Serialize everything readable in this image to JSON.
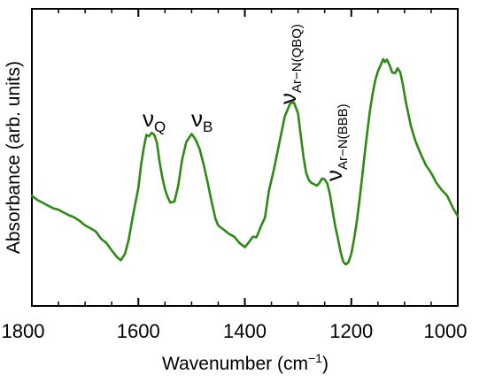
{
  "chart_data": {
    "type": "line",
    "xlabel": "Wavenumber (cm",
    "xlabel_sup": "−1",
    "xlabel_end": ")",
    "ylabel": "Absorbance (arb. units)",
    "xlim": [
      1800,
      1000
    ],
    "ylim": [
      0,
      1
    ],
    "x_reversed": true,
    "y_tick_labels_shown": false,
    "grid": false,
    "x_ticks": [
      1800,
      1600,
      1400,
      1200,
      1000
    ],
    "x_tick_labels": [
      "1800",
      "1600",
      "1400",
      "1200",
      "1000"
    ],
    "line_color": "#2d8a12",
    "series": [
      {
        "x": [
          1800,
          1790,
          1780,
          1770,
          1760,
          1750,
          1740,
          1730,
          1720,
          1710,
          1700,
          1690,
          1680,
          1670,
          1660,
          1650,
          1640,
          1633,
          1625,
          1618,
          1610,
          1600,
          1595,
          1590,
          1585,
          1580,
          1575,
          1570,
          1565,
          1560,
          1555,
          1550,
          1545,
          1540,
          1532,
          1525,
          1518,
          1510,
          1500,
          1493,
          1485,
          1478,
          1470,
          1462,
          1455,
          1450,
          1440,
          1430,
          1420,
          1410,
          1400,
          1393,
          1385,
          1378,
          1370,
          1362,
          1355,
          1345,
          1335,
          1325,
          1315,
          1308,
          1300,
          1295,
          1290,
          1285,
          1280,
          1275,
          1270,
          1265,
          1260,
          1255,
          1250,
          1245,
          1240,
          1235,
          1230,
          1225,
          1220,
          1215,
          1210,
          1205,
          1200,
          1195,
          1190,
          1185,
          1180,
          1175,
          1170,
          1165,
          1160,
          1155,
          1150,
          1145,
          1140,
          1137,
          1133,
          1128,
          1123,
          1118,
          1113,
          1108,
          1103,
          1098,
          1093,
          1088,
          1080,
          1070,
          1060,
          1050,
          1040,
          1030,
          1020,
          1010,
          1000
        ],
        "y": [
          0.371,
          0.357,
          0.348,
          0.338,
          0.329,
          0.324,
          0.314,
          0.305,
          0.298,
          0.286,
          0.271,
          0.262,
          0.251,
          0.226,
          0.212,
          0.187,
          0.164,
          0.154,
          0.176,
          0.224,
          0.305,
          0.398,
          0.474,
          0.531,
          0.576,
          0.571,
          0.583,
          0.576,
          0.548,
          0.483,
          0.433,
          0.393,
          0.367,
          0.348,
          0.352,
          0.405,
          0.491,
          0.552,
          0.579,
          0.562,
          0.529,
          0.481,
          0.417,
          0.348,
          0.293,
          0.271,
          0.257,
          0.243,
          0.233,
          0.212,
          0.198,
          0.213,
          0.233,
          0.231,
          0.267,
          0.298,
          0.386,
          0.463,
          0.551,
          0.638,
          0.681,
          0.686,
          0.648,
          0.576,
          0.505,
          0.45,
          0.424,
          0.414,
          0.41,
          0.405,
          0.414,
          0.429,
          0.426,
          0.412,
          0.374,
          0.319,
          0.267,
          0.226,
          0.181,
          0.148,
          0.14,
          0.148,
          0.176,
          0.224,
          0.281,
          0.352,
          0.429,
          0.51,
          0.586,
          0.657,
          0.714,
          0.76,
          0.79,
          0.81,
          0.831,
          0.821,
          0.829,
          0.81,
          0.786,
          0.783,
          0.8,
          0.786,
          0.743,
          0.69,
          0.648,
          0.605,
          0.557,
          0.513,
          0.474,
          0.448,
          0.414,
          0.39,
          0.371,
          0.333,
          0.302
        ]
      }
    ],
    "annotations": [
      {
        "base": "ν",
        "sub": "Q",
        "rotated": false
      },
      {
        "base": "ν",
        "sub": "B",
        "rotated": false
      },
      {
        "base": "ν",
        "sub": "Ar−N(QBQ)",
        "rotated": true
      },
      {
        "base": "ν",
        "sub": "Ar−N(BBB)",
        "rotated": true
      }
    ]
  }
}
